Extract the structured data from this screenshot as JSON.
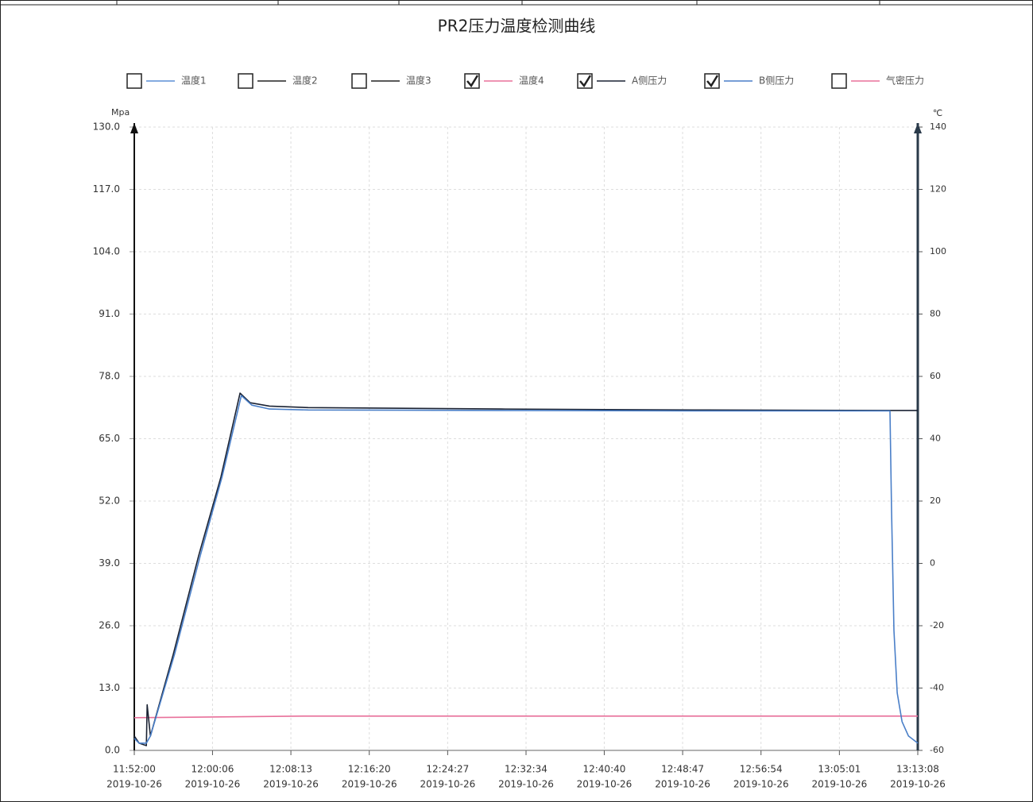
{
  "chart_data": {
    "type": "line",
    "title": "PR2压力温度检测曲线",
    "ylabel": "Mpa",
    "y2label": "℃",
    "xdate": "2019-10-26",
    "xlim": [
      "11:52:00",
      "13:13:08"
    ],
    "xticks": [
      "11:52:00",
      "12:00:06",
      "12:08:13",
      "12:16:20",
      "12:24:27",
      "12:32:34",
      "12:40:40",
      "12:48:47",
      "12:56:54",
      "13:05:01",
      "13:13:08"
    ],
    "ylim": [
      0,
      130
    ],
    "yticks": [
      {
        "value": 0,
        "label": "0.0"
      },
      {
        "value": 13,
        "label": "13.0"
      },
      {
        "value": 26,
        "label": "26.0"
      },
      {
        "value": 39,
        "label": "39.0"
      },
      {
        "value": 52,
        "label": "52.0"
      },
      {
        "value": 65,
        "label": "65.0"
      },
      {
        "value": 78,
        "label": "78.0"
      },
      {
        "value": 91,
        "label": "91.0"
      },
      {
        "value": 104,
        "label": "104.0"
      },
      {
        "value": 117,
        "label": "117.0"
      },
      {
        "value": 130,
        "label": "130.0"
      }
    ],
    "y2lim": [
      -60,
      140
    ],
    "y2ticks": [
      -60,
      -40,
      -20,
      0,
      20,
      40,
      60,
      80,
      100,
      120,
      140
    ],
    "grid": true,
    "series": [
      {
        "name": "温度1",
        "color": "#5b8fd6",
        "checked": false
      },
      {
        "name": "温度2",
        "color": "#222222",
        "checked": false
      },
      {
        "name": "温度3",
        "color": "#222222",
        "checked": false
      },
      {
        "name": "温度4",
        "color": "#e8709a",
        "checked": true,
        "axis": "y2",
        "x": [
          "11:52:00",
          "12:10:00",
          "12:40:00",
          "13:13:08"
        ],
        "values": [
          -49.5,
          -49.0,
          -49.0,
          -49.0
        ]
      },
      {
        "name": "A侧压力",
        "color": "#1a2233",
        "checked": true,
        "x": [
          "11:52:00",
          "11:52:30",
          "11:53:15",
          "11:53:20",
          "11:53:40",
          "11:56:02",
          "11:58:40",
          "12:00:58",
          "12:02:57",
          "12:04:00",
          "12:06:00",
          "12:10:00",
          "12:30:00",
          "12:50:00",
          "13:10:15",
          "13:13:08"
        ],
        "values": [
          3.0,
          1.5,
          1.0,
          9.5,
          3.0,
          20.0,
          40.6,
          57.0,
          74.5,
          72.5,
          71.8,
          71.5,
          71.2,
          71.0,
          70.9,
          70.9
        ]
      },
      {
        "name": "B侧压力",
        "color": "#4a7fc8",
        "checked": true,
        "x": [
          "11:52:00",
          "11:52:30",
          "11:53:15",
          "11:53:40",
          "11:56:10",
          "11:58:50",
          "12:01:05",
          "12:03:05",
          "12:04:10",
          "12:06:00",
          "12:10:00",
          "12:30:00",
          "12:50:00",
          "13:10:15",
          "13:10:25",
          "13:10:40",
          "13:11:00",
          "13:11:30",
          "13:12:10",
          "13:13:08"
        ],
        "values": [
          2.5,
          1.5,
          1.5,
          3.0,
          20.0,
          40.6,
          57.0,
          74.0,
          72.0,
          71.2,
          71.0,
          70.9,
          70.8,
          70.8,
          50.0,
          25.0,
          12.0,
          6.0,
          3.0,
          1.5
        ]
      },
      {
        "name": "气密压力",
        "color": "#e8709a",
        "checked": false
      }
    ]
  }
}
